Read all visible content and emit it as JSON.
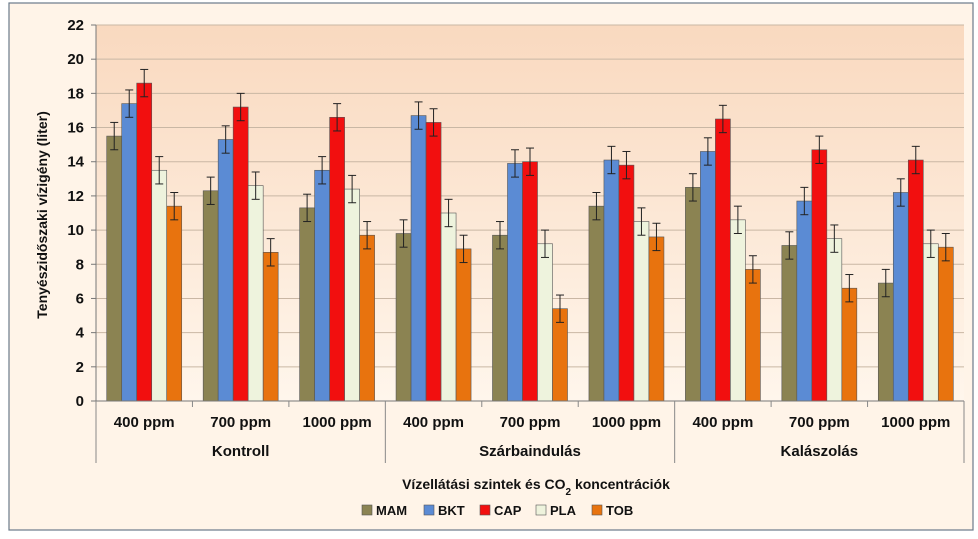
{
  "chart_data": {
    "type": "bar",
    "ylabel": "Tenyészidőszaki vízigény (liter)",
    "xlabel_main": "Vízellátási szintek és CO",
    "xlabel_sub": "2",
    "xlabel_tail": " koncentrációk",
    "ylim": [
      0,
      22
    ],
    "y_ticks": [
      "0",
      "2",
      "4",
      "6",
      "8",
      "10",
      "12",
      "14",
      "16",
      "18",
      "20",
      "22"
    ],
    "grid": true,
    "legend_position": "bottom",
    "groups": [
      "Kontroll",
      "Szárbaindulás",
      "Kalászolás"
    ],
    "categories": [
      "400 ppm",
      "700 ppm",
      "1000 ppm",
      "400 ppm",
      "700 ppm",
      "1000 ppm",
      "400 ppm",
      "700 ppm",
      "1000 ppm"
    ],
    "series": [
      {
        "name": "MAM",
        "color": "#8B8352",
        "values": [
          15.5,
          12.3,
          11.3,
          9.8,
          9.7,
          11.4,
          12.5,
          9.1,
          6.9
        ],
        "errors": [
          0.8,
          0.8,
          0.8,
          0.8,
          0.8,
          0.8,
          0.8,
          0.8,
          0.8
        ]
      },
      {
        "name": "BKT",
        "color": "#5B8BD4",
        "values": [
          17.4,
          15.3,
          13.5,
          16.7,
          13.9,
          14.1,
          14.6,
          11.7,
          12.2
        ],
        "errors": [
          0.8,
          0.8,
          0.8,
          0.8,
          0.8,
          0.8,
          0.8,
          0.8,
          0.8
        ]
      },
      {
        "name": "CAP",
        "color": "#F20F0F",
        "values": [
          18.6,
          17.2,
          16.6,
          16.3,
          14.0,
          13.8,
          16.5,
          14.7,
          14.1
        ],
        "errors": [
          0.8,
          0.8,
          0.8,
          0.8,
          0.8,
          0.8,
          0.8,
          0.8,
          0.8
        ]
      },
      {
        "name": "PLA",
        "color": "#EEF3DD",
        "values": [
          13.5,
          12.6,
          12.4,
          11.0,
          9.2,
          10.5,
          10.6,
          9.5,
          9.2
        ],
        "errors": [
          0.8,
          0.8,
          0.8,
          0.8,
          0.8,
          0.8,
          0.8,
          0.8,
          0.8
        ]
      },
      {
        "name": "TOB",
        "color": "#E8730E",
        "values": [
          11.4,
          8.7,
          9.7,
          8.9,
          5.4,
          9.6,
          7.7,
          6.6,
          9.0
        ],
        "errors": [
          0.8,
          0.8,
          0.8,
          0.8,
          0.8,
          0.8,
          0.8,
          0.8,
          0.8
        ]
      }
    ]
  }
}
